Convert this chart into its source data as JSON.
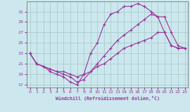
{
  "xlabel": "Windchill (Refroidissement éolien,°C)",
  "bg_color": "#cce8ee",
  "grid_color": "#aacccc",
  "line_color": "#993399",
  "xlim": [
    -0.5,
    23.5
  ],
  "ylim": [
    16.5,
    33
  ],
  "yticks": [
    17,
    19,
    21,
    23,
    25,
    27,
    29,
    31
  ],
  "xticks": [
    0,
    1,
    2,
    3,
    4,
    5,
    6,
    7,
    8,
    9,
    10,
    11,
    12,
    13,
    14,
    15,
    16,
    17,
    18,
    19,
    20,
    21,
    22,
    23
  ],
  "series": [
    {
      "x": [
        0,
        1,
        2,
        3,
        4,
        5,
        6,
        7,
        8,
        9,
        10,
        11,
        12,
        13,
        14,
        15,
        16,
        17,
        18,
        19,
        20,
        21,
        22,
        23
      ],
      "y": [
        23,
        21,
        20.5,
        19.5,
        19,
        18.5,
        17.5,
        17,
        19,
        23,
        25,
        28.5,
        30.5,
        31,
        32,
        32,
        32.5,
        32,
        31,
        30,
        27,
        24.5,
        24,
        24
      ]
    },
    {
      "x": [
        0,
        1,
        2,
        3,
        4,
        5,
        6,
        7,
        8,
        9,
        10,
        11,
        12,
        13,
        14,
        15,
        16,
        17,
        18,
        19,
        20,
        21,
        22,
        23
      ],
      "y": [
        23,
        21,
        20.5,
        20,
        19.5,
        19,
        18.5,
        17.5,
        18,
        19.5,
        21,
        22.5,
        24,
        25.5,
        26.5,
        27.5,
        28.5,
        29.5,
        30.5,
        30,
        30,
        27,
        24.5,
        24
      ]
    },
    {
      "x": [
        0,
        1,
        2,
        3,
        4,
        5,
        6,
        7,
        8,
        9,
        10,
        11,
        12,
        13,
        14,
        15,
        16,
        17,
        18,
        19,
        20,
        21,
        22,
        23
      ],
      "y": [
        23,
        21,
        20.5,
        20,
        19.5,
        19.5,
        19,
        18.5,
        19,
        19.5,
        20.5,
        21,
        22,
        23,
        24,
        24.5,
        25,
        25.5,
        26,
        27,
        27,
        24.5,
        24,
        24
      ]
    }
  ]
}
